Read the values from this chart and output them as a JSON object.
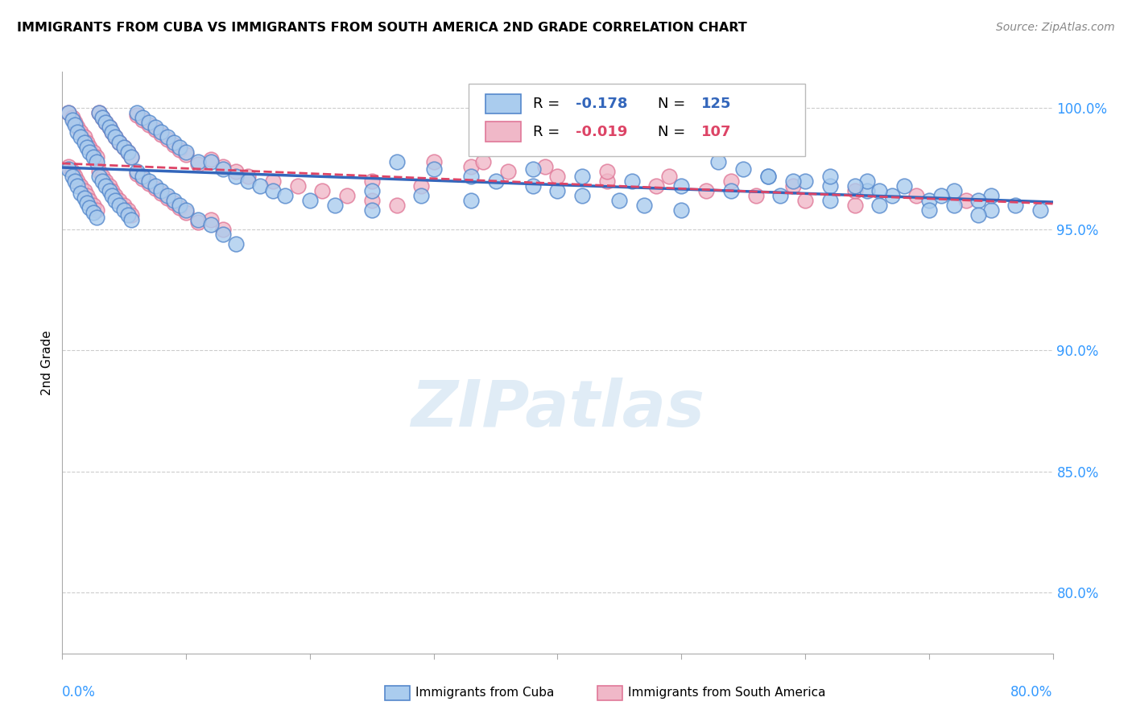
{
  "title": "IMMIGRANTS FROM CUBA VS IMMIGRANTS FROM SOUTH AMERICA 2ND GRADE CORRELATION CHART",
  "source": "Source: ZipAtlas.com",
  "ylabel": "2nd Grade",
  "yaxis_labels": [
    "100.0%",
    "95.0%",
    "90.0%",
    "85.0%",
    "80.0%"
  ],
  "yaxis_values": [
    1.0,
    0.95,
    0.9,
    0.85,
    0.8
  ],
  "xlim": [
    0.0,
    0.8
  ],
  "ylim": [
    0.775,
    1.015
  ],
  "legend_blue_R": "-0.178",
  "legend_blue_N": "125",
  "legend_pink_R": "-0.019",
  "legend_pink_N": "107",
  "blue_color": "#aaccee",
  "blue_edge": "#5588cc",
  "pink_color": "#f0b8c8",
  "pink_edge": "#e07898",
  "blue_line_color": "#3366bb",
  "pink_line_color": "#dd4466",
  "watermark_color": "#cce0f0",
  "background_color": "#ffffff",
  "blue_scatter_x": [
    0.005,
    0.008,
    0.01,
    0.012,
    0.015,
    0.018,
    0.02,
    0.022,
    0.025,
    0.028,
    0.005,
    0.008,
    0.01,
    0.012,
    0.015,
    0.018,
    0.02,
    0.022,
    0.025,
    0.028,
    0.03,
    0.032,
    0.035,
    0.038,
    0.04,
    0.043,
    0.046,
    0.05,
    0.053,
    0.056,
    0.03,
    0.032,
    0.035,
    0.038,
    0.04,
    0.043,
    0.046,
    0.05,
    0.053,
    0.056,
    0.06,
    0.065,
    0.07,
    0.075,
    0.08,
    0.085,
    0.09,
    0.095,
    0.1,
    0.11,
    0.06,
    0.065,
    0.07,
    0.075,
    0.08,
    0.085,
    0.09,
    0.095,
    0.1,
    0.11,
    0.12,
    0.13,
    0.14,
    0.15,
    0.16,
    0.17,
    0.18,
    0.2,
    0.22,
    0.25,
    0.12,
    0.13,
    0.14,
    0.27,
    0.3,
    0.33,
    0.35,
    0.38,
    0.4,
    0.42,
    0.45,
    0.47,
    0.5,
    0.53,
    0.55,
    0.57,
    0.6,
    0.62,
    0.65,
    0.67,
    0.7,
    0.72,
    0.75,
    0.62,
    0.65,
    0.68,
    0.72,
    0.75,
    0.57,
    0.59,
    0.64,
    0.66,
    0.71,
    0.74,
    0.77,
    0.79,
    0.38,
    0.42,
    0.46,
    0.5,
    0.54,
    0.58,
    0.62,
    0.66,
    0.7,
    0.74,
    0.25,
    0.29,
    0.33
  ],
  "blue_scatter_y": [
    0.998,
    0.995,
    0.993,
    0.99,
    0.988,
    0.986,
    0.984,
    0.982,
    0.98,
    0.978,
    0.975,
    0.972,
    0.97,
    0.968,
    0.965,
    0.963,
    0.961,
    0.959,
    0.957,
    0.955,
    0.998,
    0.996,
    0.994,
    0.992,
    0.99,
    0.988,
    0.986,
    0.984,
    0.982,
    0.98,
    0.972,
    0.97,
    0.968,
    0.966,
    0.964,
    0.962,
    0.96,
    0.958,
    0.956,
    0.954,
    0.998,
    0.996,
    0.994,
    0.992,
    0.99,
    0.988,
    0.986,
    0.984,
    0.982,
    0.978,
    0.974,
    0.972,
    0.97,
    0.968,
    0.966,
    0.964,
    0.962,
    0.96,
    0.958,
    0.954,
    0.978,
    0.975,
    0.972,
    0.97,
    0.968,
    0.966,
    0.964,
    0.962,
    0.96,
    0.958,
    0.952,
    0.948,
    0.944,
    0.978,
    0.975,
    0.972,
    0.97,
    0.968,
    0.966,
    0.964,
    0.962,
    0.96,
    0.958,
    0.978,
    0.975,
    0.972,
    0.97,
    0.968,
    0.966,
    0.964,
    0.962,
    0.96,
    0.958,
    0.972,
    0.97,
    0.968,
    0.966,
    0.964,
    0.972,
    0.97,
    0.968,
    0.966,
    0.964,
    0.962,
    0.96,
    0.958,
    0.975,
    0.972,
    0.97,
    0.968,
    0.966,
    0.964,
    0.962,
    0.96,
    0.958,
    0.956,
    0.966,
    0.964,
    0.962
  ],
  "pink_scatter_x": [
    0.005,
    0.008,
    0.01,
    0.012,
    0.015,
    0.018,
    0.02,
    0.022,
    0.025,
    0.028,
    0.005,
    0.008,
    0.01,
    0.012,
    0.015,
    0.018,
    0.02,
    0.022,
    0.025,
    0.028,
    0.03,
    0.032,
    0.035,
    0.038,
    0.04,
    0.043,
    0.046,
    0.05,
    0.053,
    0.056,
    0.03,
    0.032,
    0.035,
    0.038,
    0.04,
    0.043,
    0.046,
    0.05,
    0.053,
    0.056,
    0.06,
    0.065,
    0.07,
    0.075,
    0.08,
    0.085,
    0.09,
    0.095,
    0.1,
    0.11,
    0.06,
    0.065,
    0.07,
    0.075,
    0.08,
    0.085,
    0.09,
    0.095,
    0.1,
    0.11,
    0.12,
    0.13,
    0.14,
    0.15,
    0.17,
    0.19,
    0.21,
    0.23,
    0.25,
    0.27,
    0.12,
    0.13,
    0.3,
    0.33,
    0.36,
    0.4,
    0.44,
    0.48,
    0.52,
    0.56,
    0.6,
    0.64,
    0.34,
    0.39,
    0.44,
    0.49,
    0.54,
    0.59,
    0.64,
    0.69,
    0.73,
    0.25,
    0.29
  ],
  "pink_scatter_y": [
    0.998,
    0.996,
    0.994,
    0.992,
    0.99,
    0.988,
    0.986,
    0.984,
    0.982,
    0.98,
    0.976,
    0.974,
    0.972,
    0.97,
    0.968,
    0.966,
    0.964,
    0.962,
    0.96,
    0.958,
    0.998,
    0.996,
    0.994,
    0.992,
    0.99,
    0.988,
    0.986,
    0.984,
    0.982,
    0.98,
    0.974,
    0.972,
    0.97,
    0.968,
    0.966,
    0.964,
    0.962,
    0.96,
    0.958,
    0.956,
    0.997,
    0.995,
    0.993,
    0.991,
    0.989,
    0.987,
    0.985,
    0.983,
    0.981,
    0.977,
    0.973,
    0.971,
    0.969,
    0.967,
    0.965,
    0.963,
    0.961,
    0.959,
    0.957,
    0.953,
    0.979,
    0.976,
    0.974,
    0.972,
    0.97,
    0.968,
    0.966,
    0.964,
    0.962,
    0.96,
    0.954,
    0.95,
    0.978,
    0.976,
    0.974,
    0.972,
    0.97,
    0.968,
    0.966,
    0.964,
    0.962,
    0.96,
    0.978,
    0.976,
    0.974,
    0.972,
    0.97,
    0.968,
    0.966,
    0.964,
    0.962,
    0.97,
    0.968
  ]
}
